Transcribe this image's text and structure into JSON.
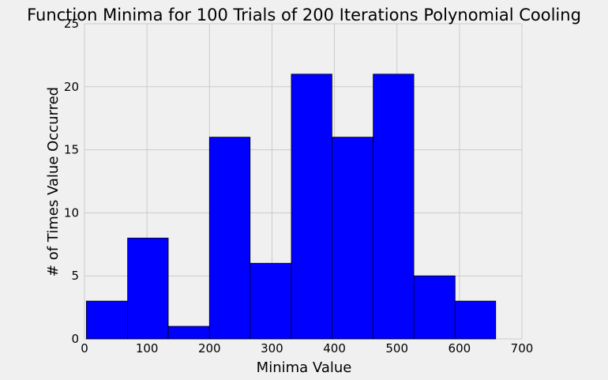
{
  "chart_data": {
    "type": "bar",
    "title": "Function Minima for 100 Trials of 200 Iterations Polynomial Cooling",
    "xlabel": "Minima Value",
    "ylabel": "# of Times Value Occurred",
    "xlim": [
      0,
      700
    ],
    "ylim": [
      0,
      25
    ],
    "xticks": [
      0,
      100,
      200,
      300,
      400,
      500,
      600,
      700
    ],
    "yticks": [
      0,
      5,
      10,
      15,
      20,
      25
    ],
    "grid": true,
    "bin_edges": [
      3,
      69,
      134,
      200,
      265,
      331,
      396,
      462,
      527,
      593,
      658
    ],
    "values": [
      3,
      8,
      1,
      16,
      6,
      21,
      16,
      21,
      5,
      3
    ],
    "bar_color": "#0000ff",
    "edge_color": "#000000",
    "background_color": "#f0f0f0",
    "grid_color": "#cbcbcb"
  }
}
